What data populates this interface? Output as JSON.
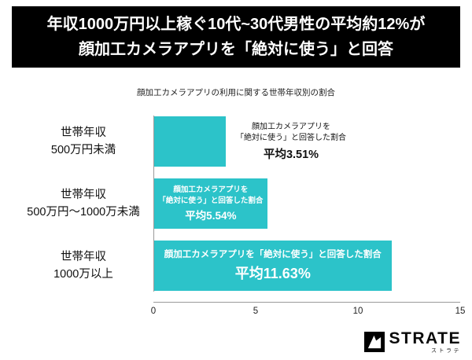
{
  "header": {
    "line1": "年収1000万円以上稼ぐ10代~30代男性の平均約12%が",
    "line2": "顔加工カメラアプリを「絶対に使う」と回答"
  },
  "chart": {
    "title": "顔加工カメラアプリの利用に関する世帯年収別の割合",
    "bar_color": "#2cc3c9",
    "x_ticks": [
      "0",
      "5",
      "10",
      "15"
    ]
  },
  "chart_data": {
    "type": "bar",
    "orientation": "horizontal",
    "title": "顔加工カメラアプリの利用に関する世帯年収別の割合",
    "categories": [
      "世帯年収 500万円未満",
      "世帯年収 500万円〜1000万未満",
      "世帯年収 1000万以上"
    ],
    "values": [
      3.51,
      5.54,
      11.63
    ],
    "xlim": [
      0,
      15
    ],
    "x_ticks": [
      0,
      5,
      10,
      15
    ],
    "value_labels": [
      "平均3.51%",
      "平均5.54%",
      "平均11.63%"
    ],
    "annotation_text": "顔加工カメラアプリを「絶対に使う」と回答した割合",
    "legend": "none",
    "grid": "off"
  },
  "rows": [
    {
      "label1": "世帯年収",
      "label2": "500万円未満",
      "ann1": "顔加工カメラアプリを",
      "ann2": "「絶対に使う」と回答した割合",
      "value_label": "平均3.51%"
    },
    {
      "label1": "世帯年収",
      "label2": "500万円〜1000万未満",
      "ann1": "顔加工カメラアプリを",
      "ann2": "「絶対に使う」と回答した割合",
      "value_label": "平均5.54%"
    },
    {
      "label1": "世帯年収",
      "label2": "1000万以上",
      "ann1": "顔加工カメラアプリを「絶対に使う」と回答した割合",
      "value_label": "平均11.63%"
    }
  ],
  "footer": {
    "brand": "STRATE",
    "brand_sub": "ストラテ"
  }
}
